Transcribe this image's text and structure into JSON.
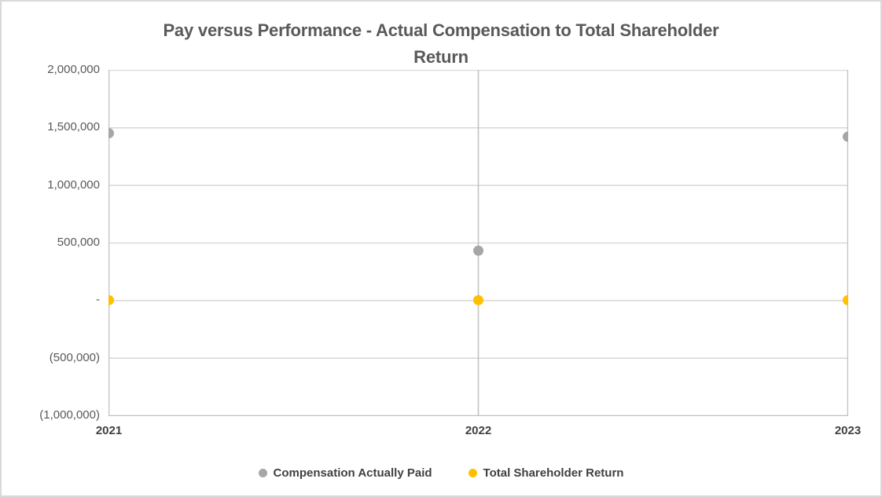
{
  "chart_data": {
    "type": "scatter",
    "title": "Pay versus Performance - Actual Compensation to Total Shareholder Return",
    "title_lines": [
      "Pay versus Performance - Actual Compensation to Total Shareholder",
      "Return"
    ],
    "categories": [
      "2021",
      "2022",
      "2023"
    ],
    "series": [
      {
        "name": "Compensation Actually Paid",
        "color": "#a6a6a6",
        "values": [
          1450000,
          430000,
          1420000
        ]
      },
      {
        "name": "Total Shareholder Return",
        "color": "#ffc000",
        "values": [
          0,
          0,
          0
        ]
      }
    ],
    "xlabel": "",
    "ylabel": "",
    "ylim": [
      -1000000,
      2000000
    ],
    "y_tick_step": 500000,
    "y_tick_labels": [
      "2,000,000",
      "1,500,000",
      "1,000,000",
      "500,000",
      "-",
      "(500,000)",
      "(1,000,000)"
    ],
    "grid": true,
    "legend_position": "bottom"
  },
  "colors": {
    "background": "#ffffff",
    "chart_border": "#d9d9d9",
    "gridline_horizontal": "#d9d9d9",
    "gridline_vertical": "#c3c3c3",
    "axis_line": "#bfbfbf",
    "title_text": "#595959",
    "y_label_text": "#595959",
    "x_label_text": "#404040",
    "legend_text": "#404040"
  }
}
